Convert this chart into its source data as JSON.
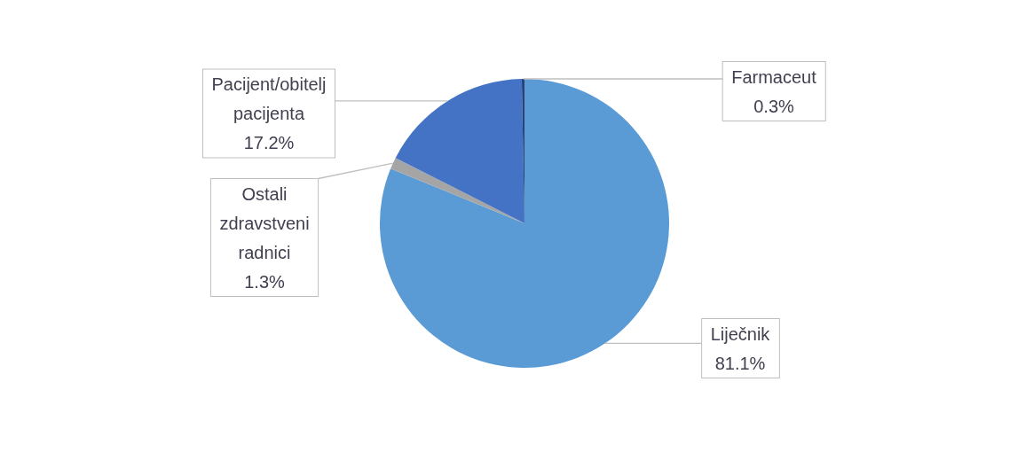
{
  "chart_data": {
    "type": "pie",
    "categories": [
      "Liječnik",
      "Ostali zdravstveni radnici",
      "Pacijent/obitelj pacijenta",
      "Farmaceut"
    ],
    "values": [
      81.1,
      1.3,
      17.2,
      0.3
    ],
    "colors": [
      "#5b9bd5",
      "#a5a5a5",
      "#4472c4",
      "#264478"
    ],
    "value_labels": [
      "81.1%",
      "1.3%",
      "17.2%",
      "0.3%"
    ],
    "legend": false
  }
}
